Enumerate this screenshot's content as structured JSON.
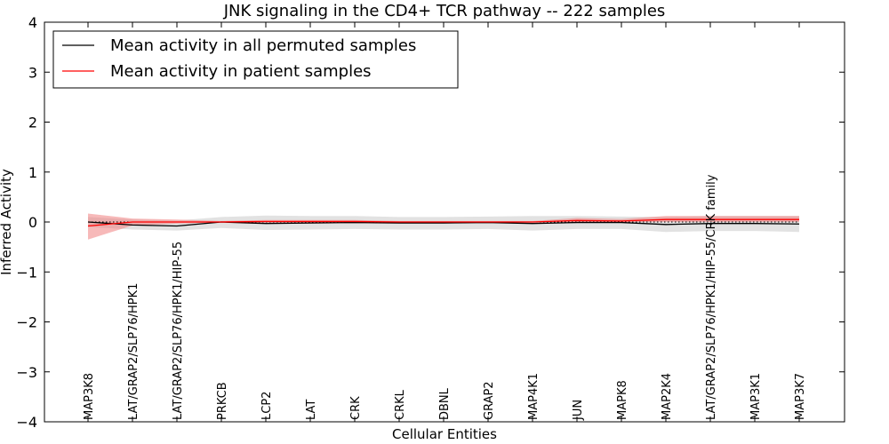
{
  "chart_data": {
    "type": "line",
    "title": "JNK signaling in the CD4+ TCR pathway -- 222 samples",
    "xlabel": "Cellular Entities",
    "ylabel": "Inferred Activity",
    "ylim": [
      -4,
      4
    ],
    "yticks": [
      -4,
      -3,
      -2,
      -1,
      0,
      1,
      2,
      3,
      4
    ],
    "ytick_labels": [
      "−4",
      "−3",
      "−2",
      "−1",
      "0",
      "1",
      "2",
      "3",
      "4"
    ],
    "categories": [
      "MAP3K8",
      "LAT/GRAP2/SLP76/HPK1",
      "LAT/GRAP2/SLP76/HPK1/HIP-55",
      "PRKCB",
      "LCP2",
      "LAT",
      "CRK",
      "CRKL",
      "DBNL",
      "GRAP2",
      "MAP4K1",
      "JUN",
      "MAPK8",
      "MAP2K4",
      "LAT/GRAP2/SLP76/HPK1/HIP-55/CRK family",
      "MAP3K1",
      "MAP3K7"
    ],
    "series": [
      {
        "name": "Mean activity in all permuted samples",
        "color": "#000000",
        "band_color": "#bfbfbf",
        "values": [
          0.0,
          -0.06,
          -0.08,
          0.0,
          -0.03,
          -0.02,
          -0.01,
          -0.02,
          -0.02,
          -0.01,
          -0.03,
          -0.01,
          -0.01,
          -0.05,
          -0.03,
          -0.03,
          -0.04
        ],
        "lower": [
          -0.1,
          -0.15,
          -0.17,
          -0.12,
          -0.16,
          -0.15,
          -0.14,
          -0.15,
          -0.15,
          -0.14,
          -0.17,
          -0.14,
          -0.14,
          -0.2,
          -0.18,
          -0.18,
          -0.2
        ],
        "upper": [
          0.1,
          0.05,
          0.03,
          0.1,
          0.13,
          0.12,
          0.12,
          0.1,
          0.1,
          0.11,
          0.12,
          0.12,
          0.11,
          0.1,
          0.12,
          0.12,
          0.12
        ]
      },
      {
        "name": "Mean activity in patient samples",
        "color": "#ff0000",
        "band_color": "#f08080",
        "values": [
          -0.08,
          0.0,
          0.0,
          0.0,
          0.01,
          0.01,
          0.01,
          0.0,
          0.0,
          0.0,
          0.0,
          0.03,
          0.02,
          0.05,
          0.05,
          0.05,
          0.05
        ],
        "lower": [
          -0.35,
          -0.07,
          -0.03,
          -0.01,
          -0.01,
          -0.01,
          -0.01,
          -0.01,
          -0.01,
          -0.01,
          -0.01,
          0.0,
          0.0,
          0.0,
          0.0,
          0.0,
          0.0
        ],
        "upper": [
          0.17,
          0.07,
          0.05,
          0.02,
          0.04,
          0.04,
          0.04,
          0.02,
          0.02,
          0.02,
          0.02,
          0.08,
          0.06,
          0.12,
          0.12,
          0.12,
          0.12
        ]
      }
    ],
    "reference_line": 0,
    "legend_position": "top-left",
    "grid": false
  }
}
